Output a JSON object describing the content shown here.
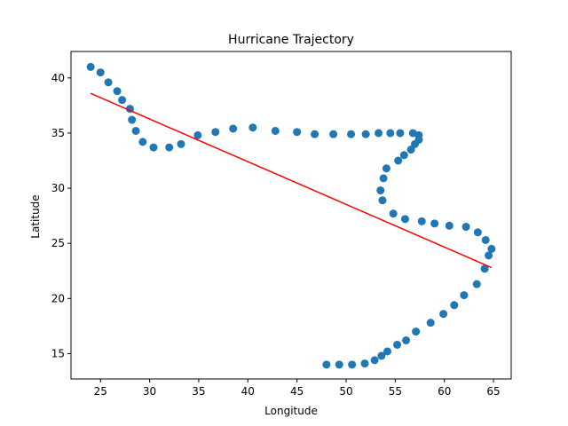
{
  "chart_data": {
    "type": "scatter",
    "title": "Hurricane Trajectory",
    "xlabel": "Longitude",
    "ylabel": "Latitude",
    "xlim": [
      22.0,
      66.8
    ],
    "ylim": [
      12.7,
      42.4
    ],
    "xticks": [
      25,
      30,
      35,
      40,
      45,
      50,
      55,
      60,
      65
    ],
    "yticks": [
      15,
      20,
      25,
      30,
      35,
      40
    ],
    "xtick_labels": [
      "25",
      "30",
      "35",
      "40",
      "45",
      "50",
      "55",
      "60",
      "65"
    ],
    "ytick_labels": [
      "15",
      "20",
      "25",
      "30",
      "35",
      "40"
    ],
    "grid": false,
    "series": [
      {
        "kind": "scatter",
        "color": "#1f77b4",
        "x": [
          24.0,
          25.0,
          25.8,
          26.7,
          27.2,
          28.0,
          28.2,
          28.6,
          29.3,
          30.4,
          32.0,
          33.2,
          34.9,
          36.7,
          38.5,
          40.5,
          42.8,
          45.0,
          46.8,
          48.7,
          50.5,
          52.0,
          53.3,
          54.5,
          55.5,
          56.8,
          57.4,
          57.4,
          57.0,
          56.6,
          55.9,
          55.3,
          54.1,
          53.8,
          53.5,
          53.7,
          54.8,
          56.0,
          57.7,
          59.0,
          60.5,
          62.2,
          63.4,
          64.2,
          64.8,
          64.5,
          64.1,
          63.3,
          62.0,
          61.0,
          59.9,
          58.6,
          57.1,
          56.1,
          55.2,
          54.2,
          53.6,
          52.9,
          51.9,
          50.6,
          49.3,
          48.0
        ],
        "y": [
          41.0,
          40.5,
          39.6,
          38.8,
          38.0,
          37.2,
          36.2,
          35.2,
          34.2,
          33.7,
          33.7,
          34.0,
          34.8,
          35.1,
          35.4,
          35.5,
          35.2,
          35.1,
          34.9,
          34.9,
          34.9,
          34.9,
          35.0,
          35.0,
          35.0,
          35.0,
          34.8,
          34.4,
          34.0,
          33.5,
          33.0,
          32.5,
          31.8,
          30.9,
          29.8,
          28.9,
          27.7,
          27.2,
          27.0,
          26.8,
          26.6,
          26.5,
          26.0,
          25.3,
          24.5,
          23.9,
          22.7,
          21.3,
          20.3,
          19.4,
          18.6,
          17.8,
          17.0,
          16.2,
          15.8,
          15.2,
          14.8,
          14.4,
          14.1,
          14.0,
          14.0,
          14.0
        ]
      },
      {
        "kind": "line",
        "color": "#ff0000",
        "x": [
          24.0,
          64.8
        ],
        "y": [
          38.6,
          22.8
        ]
      }
    ]
  }
}
